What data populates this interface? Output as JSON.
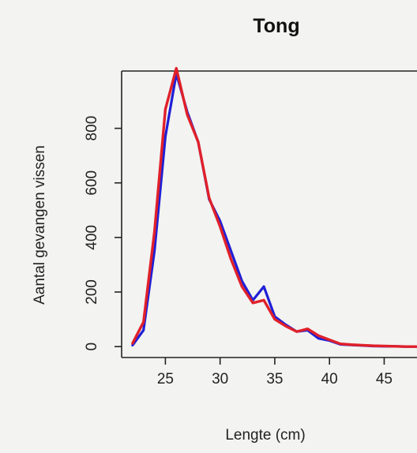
{
  "chart_data": {
    "type": "line",
    "title": "Tong",
    "xlabel": "Lengte (cm)",
    "ylabel": "Aantal gevangen vissen",
    "xlim": [
      21,
      48
    ],
    "ylim": [
      -40,
      1010
    ],
    "x_ticks": [
      25,
      30,
      35,
      40,
      45
    ],
    "y_ticks": [
      0,
      200,
      400,
      600,
      800
    ],
    "grid": false,
    "legend": "none",
    "series": [
      {
        "color": "#1f1fd6",
        "x": [
          22,
          23,
          24,
          25,
          26,
          27,
          28,
          29,
          30,
          31,
          32,
          33,
          34,
          35,
          36,
          37,
          38,
          39,
          40,
          41,
          42,
          43,
          44,
          45,
          46,
          47,
          48
        ],
        "y": [
          5,
          60,
          350,
          770,
          1000,
          860,
          750,
          540,
          460,
          350,
          240,
          170,
          220,
          110,
          80,
          55,
          60,
          30,
          22,
          8,
          6,
          4,
          2,
          1,
          1,
          0,
          0
        ]
      },
      {
        "color": "#e0202a",
        "x": [
          22,
          23,
          24,
          25,
          26,
          27,
          28,
          29,
          30,
          31,
          32,
          33,
          34,
          35,
          36,
          37,
          38,
          39,
          40,
          41,
          42,
          43,
          44,
          45,
          46,
          47,
          48
        ],
        "y": [
          12,
          90,
          420,
          870,
          1020,
          850,
          750,
          545,
          440,
          320,
          220,
          160,
          170,
          100,
          75,
          55,
          65,
          40,
          25,
          10,
          7,
          5,
          3,
          2,
          1,
          0,
          0
        ]
      }
    ]
  }
}
